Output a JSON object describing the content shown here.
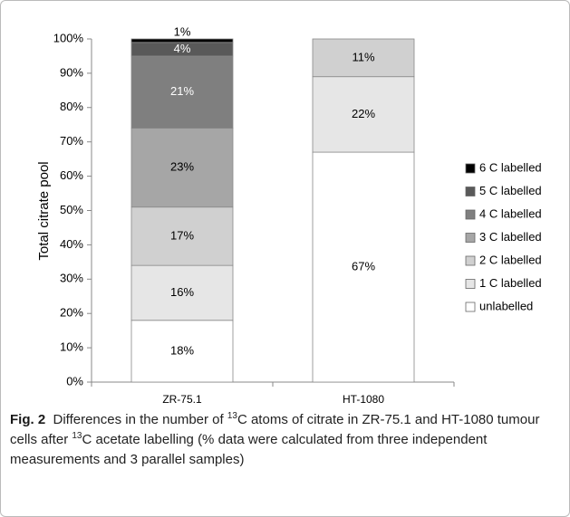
{
  "chart_data": {
    "type": "stacked_bar",
    "y_label": "Total citrate pool",
    "categories": [
      "ZR-75.1",
      "HT-1080"
    ],
    "series": [
      {
        "name": "unlabelled",
        "color": "#ffffff",
        "values": [
          18,
          67
        ],
        "value_labels": [
          "18%",
          "67%"
        ]
      },
      {
        "name": "1 C labelled",
        "color": "#e6e6e6",
        "values": [
          16,
          22
        ],
        "value_labels": [
          "16%",
          "22%"
        ]
      },
      {
        "name": "2 C labelled",
        "color": "#d0d0d0",
        "values": [
          17,
          11
        ],
        "value_labels": [
          "17%",
          "11%"
        ]
      },
      {
        "name": "3 C labelled",
        "color": "#a6a6a6",
        "values": [
          23,
          null
        ],
        "value_labels": [
          "23%",
          null
        ]
      },
      {
        "name": "4 C labelled",
        "color": "#7f7f7f",
        "values": [
          21,
          null
        ],
        "value_labels": [
          "21%",
          null
        ]
      },
      {
        "name": "5 C labelled",
        "color": "#595959",
        "values": [
          4,
          null
        ],
        "value_labels": [
          "4%",
          null
        ]
      },
      {
        "name": "6 C labelled",
        "color": "#000000",
        "values": [
          1,
          null
        ],
        "value_labels": [
          "1%",
          null
        ]
      }
    ],
    "ylim": [
      0,
      100
    ],
    "yticks": [
      {
        "value": 0,
        "label": "0%"
      },
      {
        "value": 10,
        "label": "10%"
      },
      {
        "value": 20,
        "label": "20%"
      },
      {
        "value": 30,
        "label": "30%"
      },
      {
        "value": 40,
        "label": "40%"
      },
      {
        "value": 50,
        "label": "50%"
      },
      {
        "value": 60,
        "label": "60%"
      },
      {
        "value": 70,
        "label": "70%"
      },
      {
        "value": 80,
        "label": "80%"
      },
      {
        "value": 90,
        "label": "90%"
      },
      {
        "value": 100,
        "label": "100%"
      }
    ],
    "legend": "right"
  },
  "caption": {
    "label": "Fig. 2",
    "parts": [
      "Differences in the number of ",
      "13",
      "C atoms of citrate in ZR-75.1 and HT-1080 tumour cells after ",
      "13",
      "C acetate labelling (% data were calculated from three independent measurements and 3 parallel samples)"
    ]
  }
}
